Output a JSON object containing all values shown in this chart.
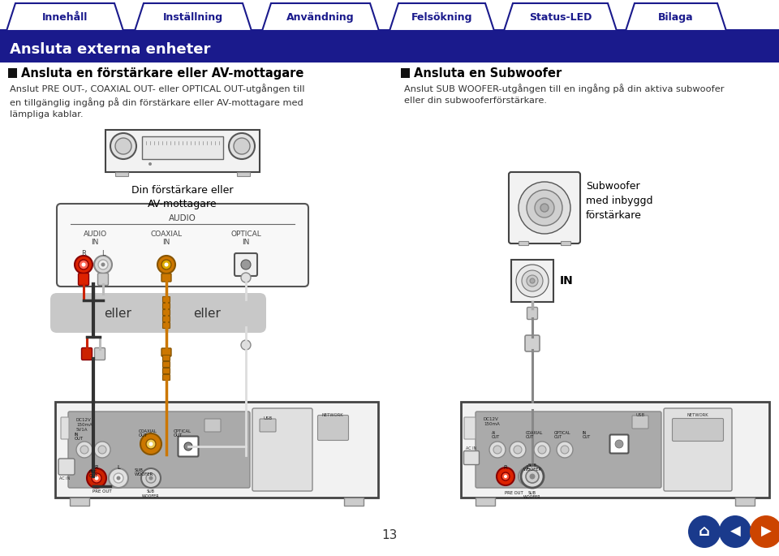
{
  "page_bg": "#ffffff",
  "tab_bg": "#ffffff",
  "tab_border": "#1a1a8c",
  "tab_text_color": "#1a1a8c",
  "tabs": [
    "Innehåll",
    "Inställning",
    "Användning",
    "Felsökning",
    "Status-LED",
    "Bilaga"
  ],
  "header_bg": "#1a1a8c",
  "header_text": "Ansluta externa enheter",
  "header_text_color": "#ffffff",
  "nav_bar_color": "#1a1a8c",
  "section1_title": "Ansluta en förstärkare eller AV-mottagare",
  "section1_body": "Anslut PRE OUT-, COAXIAL OUT- eller OPTICAL OUT-utgången till\nen tillgänglig ingång på din förstärkare eller AV-mottagare med\nlämpliga kablar.",
  "section2_title": "Ansluta en Subwoofer",
  "section2_body": "Anslut SUB WOOFER-utgången till en ingång på din aktiva subwoofer\neller din subwooferförstärkare.",
  "label1": "Din förstärkare eller\nAV-mottagare",
  "label_audio": "AUDIO",
  "label_eller1": "eller",
  "label_eller2": "eller",
  "label2": "Subwoofer\nmed inbyggd\nförstärkare",
  "label_in": "IN",
  "page_number": "13",
  "body_text_color": "#333333",
  "red_connector": "#cc2200",
  "orange_connector": "#cc7700",
  "white_connector": "#e8e8e8",
  "eller_bg": "#c8c8c8",
  "device_border": "#444444",
  "panel_bg": "#aaaaaa"
}
